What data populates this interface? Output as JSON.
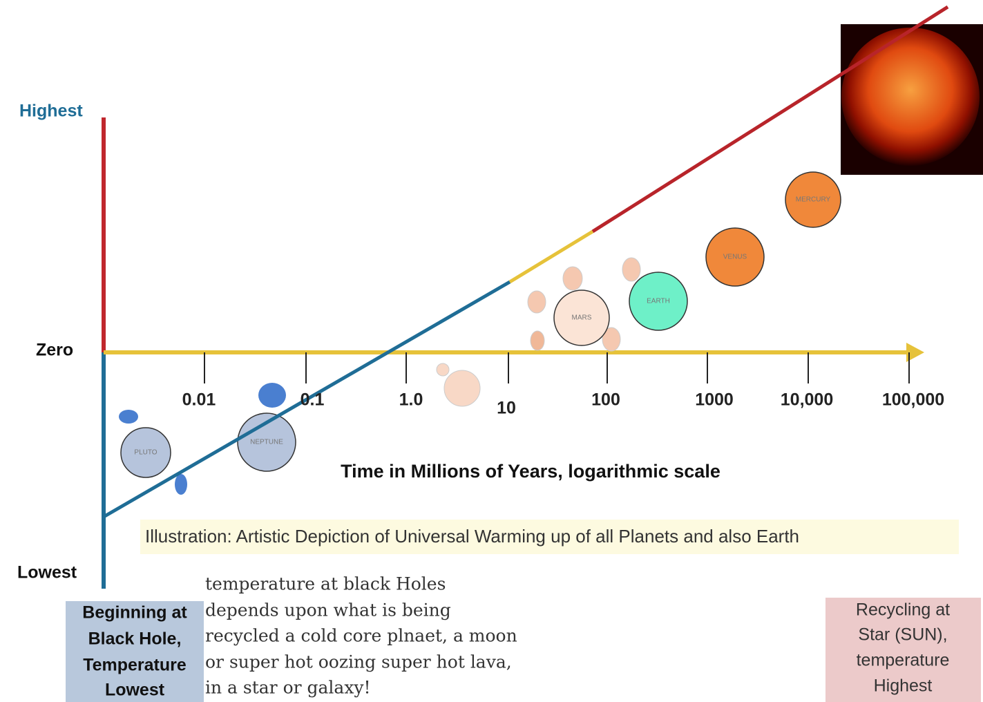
{
  "axis": {
    "top_label": "Highest",
    "zero_label": "Zero",
    "bottom_label": "Lowest",
    "ticks": [
      "0.01",
      "0.1",
      "1.0",
      "10",
      "100",
      "1000",
      "10,000",
      "100,000"
    ],
    "title": "Time in Millions of Years, logarithmic scale"
  },
  "planets": [
    "PLUTO",
    "NEPTUNE",
    "MARS",
    "EARTH",
    "VENUS",
    "MERCURY"
  ],
  "caption": "Illustration: Artistic Depiction of Universal Warming up of all Planets and also  Earth",
  "left_box": [
    "Beginning at",
    "Black Hole,",
    "Temperature",
    "Lowest"
  ],
  "note": [
    "temperature at black Holes",
    "depends upon what is being",
    "recycled a cold core plnaet, a moon",
    "or super hot oozing super hot lava,",
    "in a  star or galaxy!"
  ],
  "right_box": [
    "Recycling at",
    "Star (SUN),",
    "temperature",
    "Highest"
  ]
}
